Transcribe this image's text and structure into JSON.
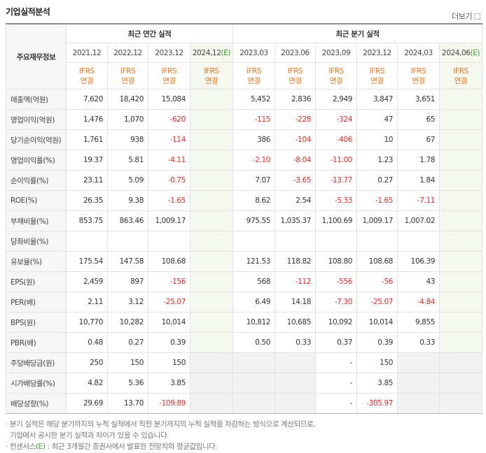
{
  "header": {
    "title": "기업실적분석",
    "more": "더보기"
  },
  "table": {
    "corner": "주요재무정보",
    "groups": [
      "최근 연간 실적",
      "최근 분기 실적"
    ],
    "periods": [
      {
        "date": "2021,12",
        "standard": "IFRS",
        "scope": "연결"
      },
      {
        "date": "2022,12",
        "standard": "IFRS",
        "scope": "연결"
      },
      {
        "date": "2023,12",
        "standard": "IFRS",
        "scope": "연결"
      },
      {
        "date": "2024,12",
        "estimate": "(E)",
        "standard": "IFRS",
        "scope": "연결"
      },
      {
        "date": "2023,03",
        "standard": "IFRS",
        "scope": "연결"
      },
      {
        "date": "2023,06",
        "standard": "IFRS",
        "scope": "연결"
      },
      {
        "date": "2023,09",
        "standard": "IFRS",
        "scope": "연결"
      },
      {
        "date": "2023,12",
        "standard": "IFRS",
        "scope": "연결"
      },
      {
        "date": "2024,03",
        "standard": "IFRS",
        "scope": "연결"
      },
      {
        "date": "2024,06",
        "estimate": "(E)",
        "standard": "IFRS",
        "scope": "연결"
      }
    ],
    "rows": [
      {
        "label": "매출액(억원)",
        "values": [
          "7,620",
          "18,420",
          "15,084",
          null,
          "5,452",
          "2,836",
          "2,949",
          "3,847",
          "3,651",
          null
        ]
      },
      {
        "label": "영업이익(억원)",
        "values": [
          "1,476",
          "1,070",
          "-620",
          null,
          "-115",
          "-228",
          "-324",
          "47",
          "65",
          null
        ]
      },
      {
        "label": "당기순이익(억원)",
        "values": [
          "1,761",
          "938",
          "-114",
          null,
          "386",
          "-104",
          "-406",
          "10",
          "67",
          null
        ]
      },
      {
        "label": "영업이익률(%)",
        "values": [
          "19.37",
          "5.81",
          "-4.11",
          null,
          "-2.10",
          "-8.04",
          "-11.00",
          "1.23",
          "1.78",
          null
        ]
      },
      {
        "label": "순이익률(%)",
        "values": [
          "23.11",
          "5.09",
          "-0.75",
          null,
          "7.07",
          "-3.65",
          "-13.77",
          "0.27",
          "1.84",
          null
        ]
      },
      {
        "label": "ROE(%)",
        "values": [
          "26.35",
          "9.38",
          "-1.65",
          null,
          "8.62",
          "2.54",
          "-5.33",
          "-1.65",
          "-7.11",
          null
        ]
      },
      {
        "label": "부채비율(%)",
        "values": [
          "853.75",
          "863.46",
          "1,009.17",
          null,
          "975.55",
          "1,035.37",
          "1,100.69",
          "1,009.17",
          "1,007.02",
          null
        ]
      },
      {
        "label": "당좌비율(%)",
        "values": [
          null,
          null,
          null,
          null,
          null,
          null,
          null,
          null,
          null,
          null
        ]
      },
      {
        "label": "유보율(%)",
        "values": [
          "175.54",
          "147.58",
          "108.68",
          null,
          "121.53",
          "118.82",
          "108.80",
          "108.68",
          "106.39",
          null
        ]
      },
      {
        "label": "EPS(원)",
        "values": [
          "2,459",
          "897",
          "-156",
          null,
          "568",
          "-112",
          "-556",
          "-56",
          "43",
          null
        ]
      },
      {
        "label": "PER(배)",
        "values": [
          "2.11",
          "3.12",
          "-25.07",
          null,
          "6.49",
          "14.18",
          "-7.30",
          "-25.07",
          "-4.84",
          null
        ]
      },
      {
        "label": "BPS(원)",
        "values": [
          "10,770",
          "10,282",
          "10,014",
          null,
          "10,812",
          "10,685",
          "10,092",
          "10,014",
          "9,855",
          null
        ]
      },
      {
        "label": "PBR(배)",
        "values": [
          "0.48",
          "0.27",
          "0.39",
          null,
          "0.50",
          "0.33",
          "0.37",
          "0.39",
          "0.33",
          null
        ]
      },
      {
        "label": "주당배당금(원)",
        "values": [
          "250",
          "150",
          "150",
          null,
          null,
          null,
          "-",
          "150",
          null,
          null
        ]
      },
      {
        "label": "시가배당률(%)",
        "values": [
          "4.82",
          "5.36",
          "3.85",
          null,
          null,
          null,
          "-",
          "3.85",
          null,
          null
        ]
      },
      {
        "label": "배당성향(%)",
        "values": [
          "29.69",
          "13.70",
          "-109.89",
          null,
          null,
          null,
          "-",
          "-305.97",
          null,
          null
        ]
      }
    ]
  },
  "notes": {
    "method": [
      "분기 실적은 해당 분기까지의 누적 실적에서 직전 분기까지의 누적 실적을 차감하는 방식으로 계산되므로,",
      "기업에서 공시한 분기 실적과 차이가 있을 수 있습니다."
    ],
    "consensus": {
      "term": "컨센서스",
      "mark": "(E)",
      "text": " : 최근 3개월간 증권사에서 발표한 전망치의 평균값입니다."
    }
  }
}
